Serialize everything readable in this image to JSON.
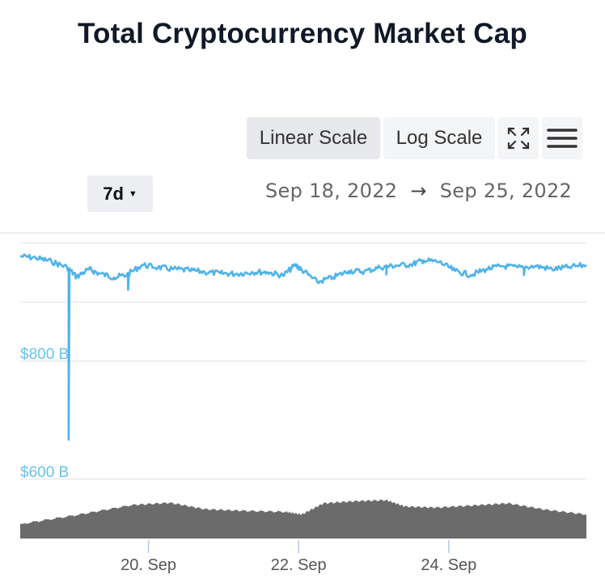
{
  "title": "Total Cryptocurrency Market Cap",
  "toolbar": {
    "linear_label": "Linear Scale",
    "log_label": "Log Scale",
    "active": "Linear Scale"
  },
  "range": {
    "label": "7d"
  },
  "date_range": {
    "start": "Sep 18, 2022",
    "arrow": "→",
    "end": "Sep 25, 2022"
  },
  "colors": {
    "line": "#4fb3ea",
    "volume": "#6b6b6b",
    "grid": "#e6e6e6",
    "axis_label": "#6cc1ee"
  },
  "chart_data": {
    "type": "line",
    "title": "Total Cryptocurrency Market Cap",
    "x_ticks": [
      "20. Sep",
      "22. Sep",
      "24. Sep"
    ],
    "y_ticks": [
      "$800 B",
      "$600 B"
    ],
    "ylim": [
      600,
      1000
    ],
    "grid": true,
    "series": [
      {
        "values_note": "market cap in $B",
        "x": [
          "2022-09-18 07:00",
          "2022-09-18 12:00",
          "2022-09-18 17:00",
          "2022-09-18 22:00",
          "2022-09-19 01:00",
          "2022-09-19 05:00",
          "2022-09-19 08:00",
          "2022-09-19 13:00",
          "2022-09-19 17:00",
          "2022-09-19 22:00",
          "2022-09-20 03:00",
          "2022-09-20 08:00",
          "2022-09-20 13:00",
          "2022-09-20 18:00",
          "2022-09-20 23:00",
          "2022-09-21 04:00",
          "2022-09-21 09:00",
          "2022-09-21 14:00",
          "2022-09-21 19:00",
          "2022-09-21 23:00",
          "2022-09-22 01:00",
          "2022-09-22 06:00",
          "2022-09-22 11:00",
          "2022-09-22 16:00",
          "2022-09-22 21:00",
          "2022-09-23 02:00",
          "2022-09-23 07:00",
          "2022-09-23 12:00",
          "2022-09-23 16:00",
          "2022-09-23 21:00",
          "2022-09-24 02:00",
          "2022-09-24 07:00",
          "2022-09-24 12:00",
          "2022-09-24 17:00",
          "2022-09-24 22:00",
          "2022-09-25 04:00",
          "2022-09-25 09:00",
          "2022-09-25 14:00",
          "2022-09-25 20:00"
        ],
        "y": [
          977,
          974,
          968,
          958,
          942,
          955,
          948,
          941,
          945,
          962,
          958,
          955,
          953,
          950,
          948,
          947,
          950,
          950,
          944,
          962,
          954,
          933,
          941,
          952,
          951,
          958,
          961,
          963,
          970,
          967,
          952,
          945,
          955,
          960,
          958,
          960,
          955,
          958,
          962
        ]
      }
    ],
    "spikes": [
      {
        "x": "2022-09-18 22:30",
        "y": 666
      },
      {
        "x": "2022-09-19 17:30",
        "y": 920
      },
      {
        "x": "2022-09-23 04:00",
        "y": 946
      },
      {
        "x": "2022-09-25 00:00",
        "y": 945
      }
    ],
    "volume": {
      "x": [
        "2022-09-18 07:00",
        "2022-09-19 02:00",
        "2022-09-19 19:00",
        "2022-09-20 07:00",
        "2022-09-20 18:00",
        "2022-09-21 06:00",
        "2022-09-21 20:00",
        "2022-09-22 01:00",
        "2022-09-22 08:00",
        "2022-09-22 18:00",
        "2022-09-23 04:00",
        "2022-09-23 10:00",
        "2022-09-23 20:00",
        "2022-09-24 08:00",
        "2022-09-24 19:00",
        "2022-09-25 07:00",
        "2022-09-25 20:00"
      ],
      "y": [
        0.27,
        0.45,
        0.63,
        0.67,
        0.55,
        0.52,
        0.5,
        0.45,
        0.66,
        0.7,
        0.72,
        0.6,
        0.58,
        0.62,
        0.66,
        0.54,
        0.45
      ]
    }
  }
}
